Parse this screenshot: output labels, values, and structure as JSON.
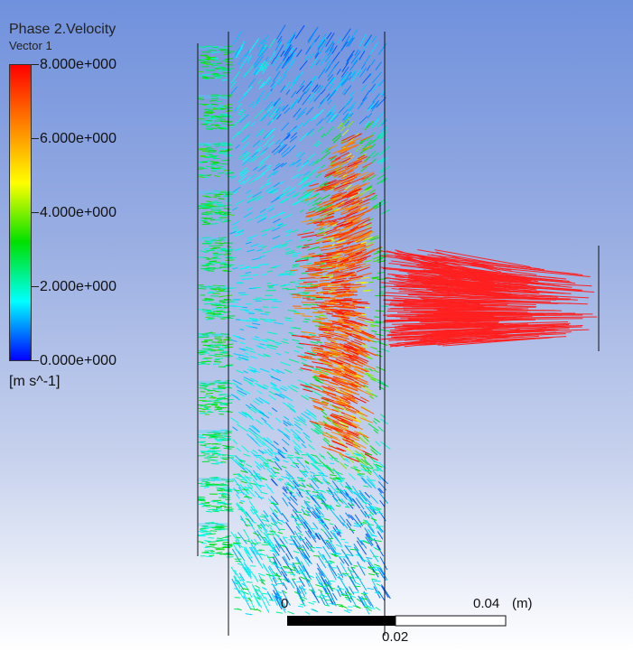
{
  "legend": {
    "title": "Phase 2.Velocity",
    "subtitle": "Vector 1",
    "unit": "[m s^-1]",
    "ticks": [
      "8.000e+000",
      "6.000e+000",
      "4.000e+000",
      "2.000e+000",
      "0.000e+000"
    ],
    "min": 0,
    "max": 8,
    "colors": [
      "#ff0000",
      "#ff8000",
      "#ffff00",
      "#00e000",
      "#00ffff",
      "#0000ff"
    ]
  },
  "scale": {
    "label_start": "0",
    "label_mid": "0.02",
    "label_end": "0.04",
    "units": "(m)"
  },
  "colors": {
    "background_top": "#7091dd",
    "background_bottom": "#ffffff",
    "outline": "#111111"
  }
}
